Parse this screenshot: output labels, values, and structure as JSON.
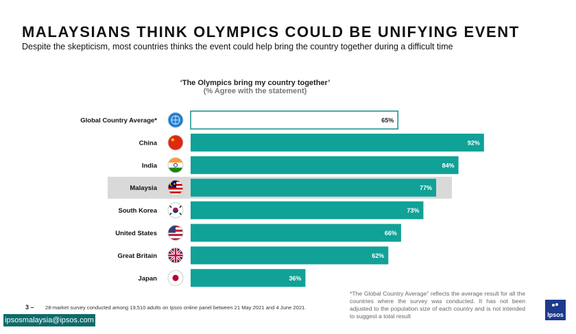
{
  "header": {
    "title": "MALAYSIANS THINK OLYMPICS COULD BE UNIFYING EVENT",
    "subtitle": "Despite the skepticism, most countries thinks the event could help bring the country together during a difficult time"
  },
  "chart_data": {
    "type": "bar",
    "orientation": "horizontal",
    "title": "‘The Olympics bring my country together’",
    "subtitle": "(% Agree with the statement)",
    "categories": [
      "Global Country Average*",
      "China",
      "India",
      "Malaysia",
      "South Korea",
      "United States",
      "Great Britain",
      "Japan"
    ],
    "values": [
      65,
      92,
      84,
      77,
      73,
      66,
      62,
      36
    ],
    "value_labels": [
      "65%",
      "92%",
      "84%",
      "77%",
      "73%",
      "66%",
      "62%",
      "36%"
    ],
    "highlight_category": "Malaysia",
    "outlined_category": "Global Country Average*",
    "xlim": [
      0,
      100
    ],
    "xlabel": "",
    "ylabel": "",
    "grid": false,
    "legend": "none"
  },
  "flags": [
    "globe-icon",
    "china-flag-icon",
    "india-flag-icon",
    "malaysia-flag-icon",
    "south-korea-flag-icon",
    "united-states-flag-icon",
    "great-britain-flag-icon",
    "japan-flag-icon"
  ],
  "colors": {
    "bar": "#10a197",
    "bar_outline": "#0f8f8a",
    "highlight_band": "#d9d9d9",
    "label_text": "#111111",
    "email_bg": "#0d6b6b",
    "logo_bg": "#1d3a8c"
  },
  "note": "*The Global Country Average” reflects the average result for all the countries where the survey was conducted. It has not been adjusted to the population size of each country and is not intended to suggest a total result",
  "footer": {
    "page_number": "3 –",
    "footnote": "28-market survey conducted among 19,510 adults on Ipsos online panel between 21 May 2021 and 4 June 2021.",
    "email": "ipsosmalaysia@ipsos.com",
    "logo_text": "Ipsos"
  }
}
